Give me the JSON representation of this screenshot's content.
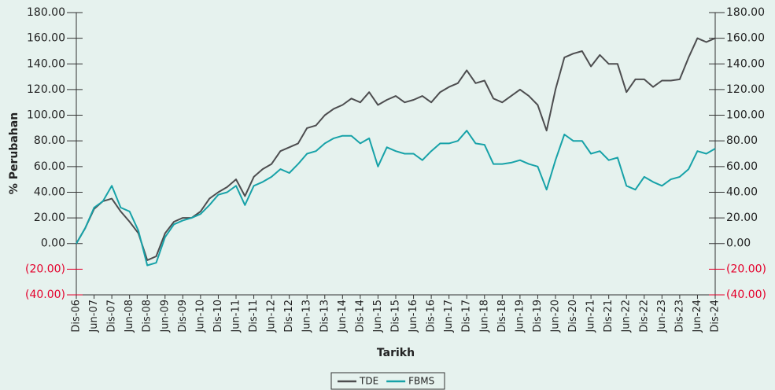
{
  "chart_data": {
    "type": "line",
    "x_label": "Tarikh",
    "y_label": "% Perubahan",
    "categories": [
      "Dis-06",
      null,
      "Jun-07",
      null,
      "Dis-07",
      null,
      "Jun-08",
      null,
      "Dis-08",
      null,
      "Jun-09",
      null,
      "Dis-09",
      null,
      "Jun-10",
      null,
      "Dis-10",
      null,
      "Jun-11",
      null,
      "Dis-11",
      null,
      "Jun-12",
      null,
      "Dis-12",
      null,
      "Jun-13",
      null,
      "Dis-13",
      null,
      "Jun-14",
      null,
      "Dis-14",
      null,
      "Jun-15",
      null,
      "Dis-15",
      null,
      "Jun-16",
      null,
      "Dis-16",
      null,
      "Jun-17",
      null,
      "Dis-17",
      null,
      "Jun-18",
      null,
      "Dis-18",
      null,
      "Jun-19",
      null,
      "Dis-19",
      null,
      "Jun-20",
      null,
      "Dis-20",
      null,
      "Jun-21",
      null,
      "Dis-21",
      null,
      "Jun-22",
      null,
      "Dis-22",
      null,
      "Jun-23",
      null,
      "Dis-23",
      null,
      "Jun-24",
      null,
      "Dis-24"
    ],
    "series": [
      {
        "name": "TDE",
        "color": "#4d4d4f",
        "values": [
          0,
          12,
          27,
          33,
          35,
          25,
          17,
          8,
          -13,
          -10,
          8,
          17,
          20,
          20,
          25,
          35,
          40,
          44,
          50,
          37,
          52,
          58,
          62,
          72,
          75,
          78,
          90,
          92,
          100,
          105,
          108,
          113,
          110,
          118,
          108,
          112,
          115,
          110,
          112,
          115,
          110,
          118,
          122,
          125,
          135,
          125,
          127,
          113,
          110,
          115,
          120,
          115,
          108,
          88,
          120,
          145,
          148,
          150,
          138,
          147,
          140,
          140,
          118,
          128,
          128,
          122,
          127,
          127,
          128,
          145,
          160,
          157,
          160
        ]
      },
      {
        "name": "FBMS",
        "color": "#17a2a8",
        "values": [
          0,
          12,
          28,
          33,
          45,
          28,
          25,
          10,
          -17,
          -15,
          5,
          15,
          18,
          20,
          23,
          30,
          38,
          40,
          45,
          30,
          45,
          48,
          52,
          58,
          55,
          62,
          70,
          72,
          78,
          82,
          84,
          84,
          78,
          82,
          60,
          75,
          72,
          70,
          70,
          65,
          72,
          78,
          78,
          80,
          88,
          78,
          77,
          62,
          62,
          63,
          65,
          62,
          60,
          42,
          65,
          85,
          80,
          80,
          70,
          72,
          65,
          67,
          45,
          42,
          52,
          48,
          45,
          50,
          52,
          58,
          72,
          70,
          74
        ]
      }
    ],
    "ylim": [
      -40,
      180
    ],
    "yticks": [
      {
        "value": -40,
        "label": "(40.00)"
      },
      {
        "value": -20,
        "label": "(20.00)"
      },
      {
        "value": 0,
        "label": "0.00"
      },
      {
        "value": 20,
        "label": "20.00"
      },
      {
        "value": 40,
        "label": "40.00"
      },
      {
        "value": 60,
        "label": "60.00"
      },
      {
        "value": 80,
        "label": "80.00"
      },
      {
        "value": 100,
        "label": "100.00"
      },
      {
        "value": 120,
        "label": "120.00"
      },
      {
        "value": 140,
        "label": "140.00"
      },
      {
        "value": 160,
        "label": "160.00"
      },
      {
        "value": 180,
        "label": "180.00"
      }
    ],
    "y2lim": [
      -40,
      180
    ],
    "y2ticks": [
      {
        "value": -40,
        "label": "(40.00)"
      },
      {
        "value": -20,
        "label": "(20.00)"
      },
      {
        "value": 0,
        "label": "0.00"
      },
      {
        "value": 20,
        "label": "20.00"
      },
      {
        "value": 40,
        "label": "40.00"
      },
      {
        "value": 60,
        "label": "60.00"
      },
      {
        "value": 80,
        "label": "80.00"
      },
      {
        "value": 100,
        "label": "100.00"
      },
      {
        "value": 120,
        "label": "120.00"
      },
      {
        "value": 140,
        "label": "140.00"
      },
      {
        "value": 160,
        "label": "160.00"
      },
      {
        "value": 180,
        "label": "180.00"
      }
    ],
    "legend": "bottom"
  }
}
